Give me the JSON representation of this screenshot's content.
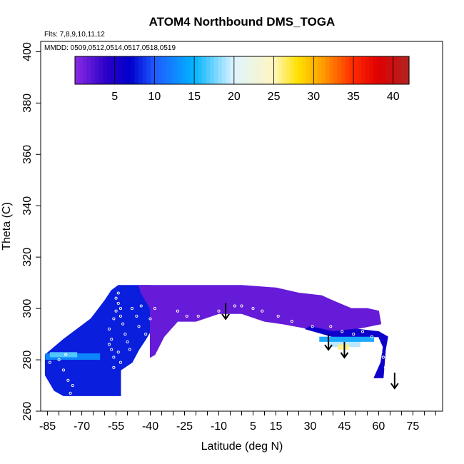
{
  "chart_data": {
    "type": "heatmap",
    "title": "ATOM4 Northbound DMS_TOGA",
    "flights_note": "Flts: 7,8,9,10,11,12",
    "dates_note": "MMDD: 0509,0512,0514,0517,0518,0519",
    "xlabel": "Latitude (deg N)",
    "ylabel": "Theta (C)",
    "xlim": [
      -88,
      88
    ],
    "ylim": [
      260,
      404
    ],
    "x_ticks": [
      "-85",
      "-70",
      "-55",
      "-40",
      "-25",
      "-10",
      "5",
      "15",
      "30",
      "45",
      "60",
      "75"
    ],
    "x_tick_values": [
      -85,
      -70,
      -55,
      -40,
      -25,
      -10,
      5,
      15,
      30,
      45,
      60,
      75
    ],
    "y_ticks": [
      "260",
      "280",
      "300",
      "320",
      "340",
      "360",
      "380",
      "400"
    ],
    "y_tick_values": [
      260,
      280,
      300,
      320,
      340,
      360,
      380,
      400
    ],
    "colorbar": {
      "range": [
        0,
        42
      ],
      "ticks": [
        "5",
        "10",
        "15",
        "20",
        "25",
        "30",
        "35",
        "40"
      ],
      "tick_values": [
        5,
        10,
        15,
        20,
        25,
        30,
        35,
        40
      ],
      "stops": [
        {
          "v": 0,
          "color": "#8a2be2"
        },
        {
          "v": 4,
          "color": "#2a00c8"
        },
        {
          "v": 7,
          "color": "#0000cc"
        },
        {
          "v": 10,
          "color": "#1e5aff"
        },
        {
          "v": 15,
          "color": "#00b4ff"
        },
        {
          "v": 20,
          "color": "#dff4ff"
        },
        {
          "v": 25,
          "color": "#fff6c0"
        },
        {
          "v": 28,
          "color": "#ffe100"
        },
        {
          "v": 31,
          "color": "#ffa000"
        },
        {
          "v": 35,
          "color": "#ff2a00"
        },
        {
          "v": 38,
          "color": "#e00000"
        },
        {
          "v": 42,
          "color": "#b22222"
        }
      ]
    },
    "regions": [
      {
        "name": "southern-block",
        "value": 8,
        "polygon": [
          [
            -86,
            282
          ],
          [
            -82,
            285
          ],
          [
            -78,
            288
          ],
          [
            -72,
            292
          ],
          [
            -66,
            296
          ],
          [
            -60,
            303
          ],
          [
            -57,
            307
          ],
          [
            -54,
            309
          ],
          [
            -40,
            309
          ],
          [
            -36,
            307
          ],
          [
            -35,
            300
          ],
          [
            -38,
            294
          ],
          [
            -42,
            288
          ],
          [
            -45,
            284
          ],
          [
            -48,
            279
          ],
          [
            -53,
            276
          ],
          [
            -53,
            266
          ],
          [
            -70,
            266
          ],
          [
            -78,
            266
          ],
          [
            -82,
            268
          ],
          [
            -86,
            274
          ]
        ]
      },
      {
        "name": "central-dome",
        "value": 1.5,
        "polygon": [
          [
            -45,
            309
          ],
          [
            -20,
            309
          ],
          [
            0,
            309
          ],
          [
            15,
            308
          ],
          [
            25,
            306
          ],
          [
            35,
            305
          ],
          [
            40,
            303
          ],
          [
            48,
            300
          ],
          [
            55,
            300
          ],
          [
            60,
            299
          ],
          [
            61,
            294
          ],
          [
            50,
            292
          ],
          [
            40,
            290
          ],
          [
            30,
            292
          ],
          [
            18,
            294
          ],
          [
            10,
            295
          ],
          [
            0,
            298
          ],
          [
            -10,
            298
          ],
          [
            -20,
            295
          ],
          [
            -28,
            295
          ],
          [
            -34,
            289
          ],
          [
            -38,
            282
          ],
          [
            -40,
            281
          ],
          [
            -40,
            300
          ],
          [
            -44,
            306
          ]
        ]
      },
      {
        "name": "northern-block",
        "value": 6,
        "polygon": [
          [
            28,
            292
          ],
          [
            40,
            289
          ],
          [
            50,
            289
          ],
          [
            60,
            289
          ],
          [
            62,
            285
          ],
          [
            61,
            279
          ],
          [
            58,
            273
          ],
          [
            62,
            273
          ],
          [
            63,
            284
          ],
          [
            64,
            289
          ],
          [
            60,
            291
          ],
          [
            50,
            292
          ],
          [
            40,
            291
          ],
          [
            30,
            293
          ]
        ]
      }
    ],
    "bands": [
      {
        "name": "southern-cyan-band",
        "value": 13,
        "lat": [
          -86,
          -62
        ],
        "theta": [
          280,
          282.5
        ]
      },
      {
        "name": "southern-cyan-core",
        "value": 17,
        "lat": [
          -84,
          -72
        ],
        "theta": [
          281,
          283
        ]
      },
      {
        "name": "northern-light-band",
        "value": 19,
        "lat": [
          38,
          52
        ],
        "theta": [
          285,
          287.5
        ]
      },
      {
        "name": "northern-yellow-spot",
        "value": 26,
        "lat": [
          42,
          47
        ],
        "theta": [
          284,
          286
        ]
      },
      {
        "name": "northern-cyan-band",
        "value": 14,
        "lat": [
          34,
          58
        ],
        "theta": [
          287,
          289
        ]
      }
    ],
    "arrows": [
      {
        "lat": -7,
        "theta": 302
      },
      {
        "lat": 38,
        "theta": 290
      },
      {
        "lat": 45,
        "theta": 287
      },
      {
        "lat": 67,
        "theta": 275
      }
    ],
    "samples": [
      [
        -84,
        279
      ],
      [
        -80,
        280
      ],
      [
        -77,
        282
      ],
      [
        -78,
        276
      ],
      [
        -76,
        272
      ],
      [
        -74,
        270
      ],
      [
        -75,
        267
      ],
      [
        -73,
        265
      ],
      [
        -58,
        292
      ],
      [
        -57,
        288
      ],
      [
        -57,
        284
      ],
      [
        -56,
        281
      ],
      [
        -58,
        286
      ],
      [
        -56,
        296
      ],
      [
        -55,
        299
      ],
      [
        -55,
        304
      ],
      [
        -54,
        306
      ],
      [
        -54,
        302
      ],
      [
        -53,
        300
      ],
      [
        -53,
        297
      ],
      [
        -52,
        294
      ],
      [
        -51,
        290
      ],
      [
        -50,
        287
      ],
      [
        -49,
        284
      ],
      [
        -48,
        300
      ],
      [
        -46,
        297
      ],
      [
        -45,
        293
      ],
      [
        -44,
        301
      ],
      [
        -42,
        290
      ],
      [
        -40,
        296
      ],
      [
        -38,
        300
      ],
      [
        -48,
        278
      ],
      [
        -51,
        276
      ],
      [
        -53,
        279
      ],
      [
        -54,
        283
      ],
      [
        -56,
        277
      ],
      [
        -28,
        299
      ],
      [
        -24,
        297
      ],
      [
        -19,
        297
      ],
      [
        -10,
        299
      ],
      [
        -3,
        301
      ],
      [
        0,
        301
      ],
      [
        5,
        300
      ],
      [
        9,
        299
      ],
      [
        16,
        297
      ],
      [
        22,
        295
      ],
      [
        31,
        293
      ],
      [
        39,
        293
      ],
      [
        44,
        291
      ],
      [
        49,
        290
      ],
      [
        53,
        291
      ],
      [
        57,
        289
      ],
      [
        60,
        286
      ],
      [
        61,
        283
      ],
      [
        62,
        281
      ],
      [
        60,
        279
      ],
      [
        63,
        277
      ]
    ]
  }
}
